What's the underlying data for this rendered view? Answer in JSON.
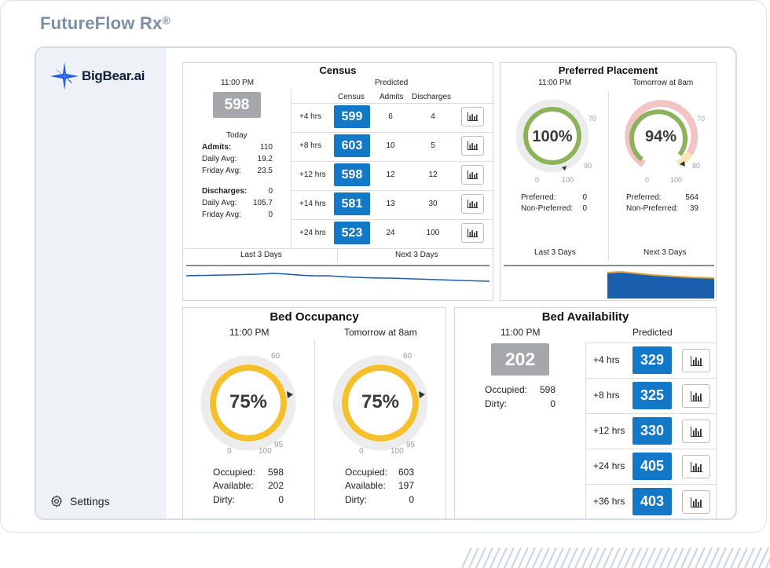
{
  "app": {
    "title": "FutureFlow Rx",
    "title_mark": "®"
  },
  "brand": {
    "logo_text": "BigBear.ai"
  },
  "sidebar": {
    "settings_label": "Settings"
  },
  "census": {
    "title": "Census",
    "current_time": "11:00 PM",
    "current_value": "598",
    "predicted_label": "Predicted",
    "today_label": "Today",
    "col_census": "Census",
    "col_admits": "Admits",
    "col_discharges": "Discharges",
    "admits_label": "Admits:",
    "admits_value": "110",
    "admits_daily_avg_label": "Daily Avg:",
    "admits_daily_avg": "19.2",
    "admits_friday_avg_label": "Friday Avg:",
    "admits_friday_avg": "23.5",
    "discharges_label": "Discharges:",
    "discharges_value": "0",
    "discharges_daily_avg_label": "Daily Avg:",
    "discharges_daily_avg": "105.7",
    "discharges_friday_avg_label": "Friday Avg:",
    "discharges_friday_avg": "0",
    "rows": [
      {
        "offset": "+4 hrs",
        "census": "599",
        "admits": "6",
        "discharges": "4"
      },
      {
        "offset": "+8 hrs",
        "census": "603",
        "admits": "10",
        "discharges": "5"
      },
      {
        "offset": "+12 hrs",
        "census": "598",
        "admits": "12",
        "discharges": "12"
      },
      {
        "offset": "+14 hrs",
        "census": "581",
        "admits": "13",
        "discharges": "30"
      },
      {
        "offset": "+24 hrs",
        "census": "523",
        "admits": "24",
        "discharges": "100"
      }
    ],
    "last_days_label": "Last 3 Days",
    "next_days_label": "Next 3 Days"
  },
  "placement": {
    "title": "Preferred Placement",
    "left": {
      "time": "11:00 PM",
      "percent": "100%",
      "percent_value": 100,
      "tick_0": "0",
      "tick_70": "70",
      "tick_90": "90",
      "tick_100": "100",
      "preferred_label": "Preferred:",
      "preferred_value": "0",
      "non_preferred_label": "Non-Preferred:",
      "non_preferred_value": "0",
      "footer": "Last 3 Days"
    },
    "right": {
      "time": "Tomorrow at 8am",
      "percent": "94%",
      "percent_value": 94,
      "tick_0": "0",
      "tick_70": "70",
      "tick_90": "90",
      "tick_100": "100",
      "preferred_label": "Preferred:",
      "preferred_value": "564",
      "non_preferred_label": "Non-Preferred:",
      "non_preferred_value": "39",
      "footer": "Next 3 Days"
    }
  },
  "occupancy": {
    "title": "Bed Occupancy",
    "left": {
      "time": "11:00 PM",
      "percent": "75%",
      "percent_value": 75,
      "tick_0": "0",
      "tick_60": "60",
      "tick_95": "95",
      "tick_100": "100",
      "occupied_label": "Occupied:",
      "occupied_value": "598",
      "available_label": "Available:",
      "available_value": "202",
      "dirty_label": "Dirty:",
      "dirty_value": "0"
    },
    "right": {
      "time": "Tomorrow at 8am",
      "percent": "75%",
      "percent_value": 75,
      "tick_0": "0",
      "tick_60": "60",
      "tick_95": "95",
      "tick_100": "100",
      "occupied_label": "Occupied:",
      "occupied_value": "603",
      "available_label": "Available:",
      "available_value": "197",
      "dirty_label": "Dirty:",
      "dirty_value": "0"
    }
  },
  "availability": {
    "title": "Bed Availability",
    "current_time": "11:00 PM",
    "current_value": "202",
    "predicted_label": "Predicted",
    "occupied_label": "Occupied:",
    "occupied_value": "598",
    "dirty_label": "Dirty:",
    "dirty_value": "0",
    "rows": [
      {
        "offset": "+4 hrs",
        "value": "329"
      },
      {
        "offset": "+8 hrs",
        "value": "325"
      },
      {
        "offset": "+12 hrs",
        "value": "330"
      },
      {
        "offset": "+24 hrs",
        "value": "405"
      },
      {
        "offset": "+36 hrs",
        "value": "403"
      }
    ]
  },
  "colors": {
    "blue": "#1478c8",
    "green": "#8db35a",
    "yellow": "#f5c02c",
    "grey_box": "#a5a7aa",
    "pink": "#f2c4c4",
    "light_yellow": "#f6e7b0"
  },
  "icons": [
    "bar-chart-icon",
    "gear-icon",
    "bigbear-star-icon"
  ]
}
